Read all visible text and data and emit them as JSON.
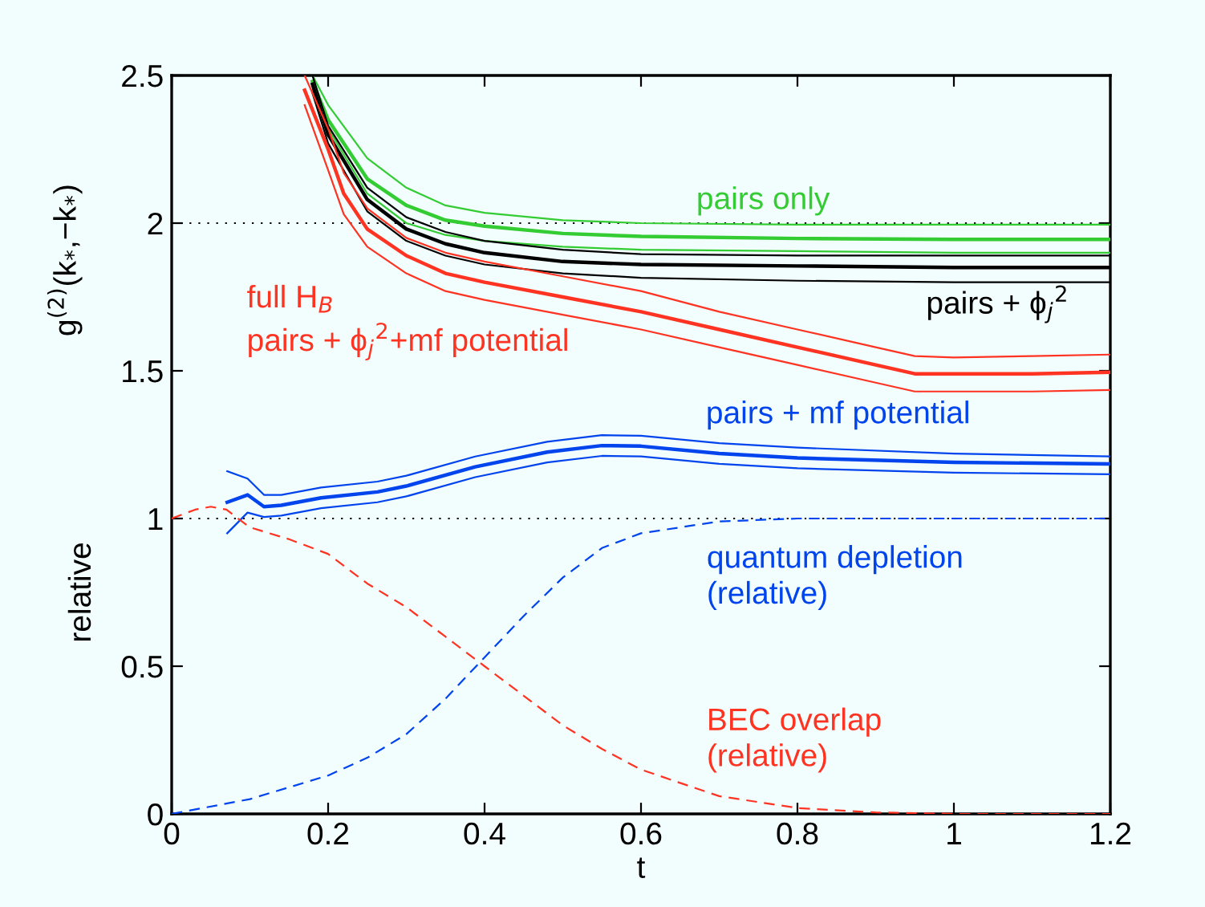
{
  "chart_data": {
    "type": "line",
    "xlabel": "t",
    "ylabel": "g$^{(2)}$(k$_{*}$,−k$_{*}$)",
    "annotations": [
      "relative"
    ],
    "xlim": [
      0,
      1.2
    ],
    "ylim": [
      0,
      2.5
    ],
    "xticks": [
      0,
      0.2,
      0.4,
      0.6,
      0.8,
      1,
      1.2
    ],
    "yticks": [
      0,
      0.5,
      1,
      1.5,
      2,
      2.5
    ],
    "grid": false,
    "legend": false,
    "marker": "none",
    "ref_lines": [
      {
        "axis": "y",
        "value": 2,
        "color": "#000000",
        "line_style": "dotted"
      },
      {
        "axis": "y",
        "value": 1,
        "color": "#000000",
        "line_style": "dotted"
      }
    ],
    "series": [
      {
        "name": "pairs only",
        "color": "#33cc33",
        "line_style": "solid",
        "x": [
          0.18,
          0.2,
          0.25,
          0.3,
          0.35,
          0.4,
          0.5,
          0.6,
          0.8,
          1.0,
          1.2
        ],
        "values": [
          2.48,
          2.35,
          2.15,
          2.06,
          2.01,
          1.99,
          1.965,
          1.955,
          1.948,
          1.945,
          1.945
        ]
      },
      {
        "color": "#33cc33",
        "line_style": "solid",
        "x": [
          0.18,
          0.2,
          0.25,
          0.3,
          0.35,
          0.4,
          0.5,
          0.6,
          0.8,
          1.0,
          1.2
        ],
        "values": [
          2.5,
          2.4,
          2.22,
          2.12,
          2.06,
          2.035,
          2.01,
          2.0,
          1.995,
          1.995,
          1.995
        ]
      },
      {
        "color": "#33cc33",
        "line_style": "solid",
        "x": [
          0.18,
          0.2,
          0.25,
          0.3,
          0.35,
          0.4,
          0.5,
          0.6,
          0.8,
          1.0,
          1.2
        ],
        "values": [
          2.45,
          2.32,
          2.1,
          2.0,
          1.96,
          1.94,
          1.92,
          1.91,
          1.905,
          1.9,
          1.9
        ]
      },
      {
        "name": "pairs + ϕ$_{j}$$^{2}$",
        "color": "#000000",
        "line_style": "solid",
        "x": [
          0.18,
          0.2,
          0.25,
          0.3,
          0.35,
          0.4,
          0.5,
          0.6,
          0.8,
          1.0,
          1.2
        ],
        "values": [
          2.47,
          2.3,
          2.08,
          1.98,
          1.93,
          1.9,
          1.87,
          1.86,
          1.855,
          1.85,
          1.85
        ]
      },
      {
        "color": "#000000",
        "line_style": "solid",
        "x": [
          0.18,
          0.2,
          0.25,
          0.3,
          0.35,
          0.4,
          0.5,
          0.6,
          0.8,
          1.0,
          1.2
        ],
        "values": [
          2.5,
          2.33,
          2.12,
          2.02,
          1.97,
          1.94,
          1.91,
          1.895,
          1.89,
          1.89,
          1.89
        ]
      },
      {
        "color": "#000000",
        "line_style": "solid",
        "x": [
          0.18,
          0.2,
          0.25,
          0.3,
          0.35,
          0.4,
          0.5,
          0.6,
          0.8,
          1.0,
          1.2
        ],
        "values": [
          2.44,
          2.27,
          2.04,
          1.94,
          1.89,
          1.86,
          1.83,
          1.815,
          1.805,
          1.8,
          1.8
        ]
      },
      {
        "name": "full H$_{B}$\npairs + ϕ$_{j}$$^{2}$+mf potential",
        "color": "#ff3322",
        "line_style": "solid",
        "x": [
          0.17,
          0.2,
          0.22,
          0.25,
          0.3,
          0.35,
          0.4,
          0.5,
          0.6,
          0.7,
          0.8,
          0.9,
          0.95,
          1.0,
          1.1,
          1.2
        ],
        "values": [
          2.45,
          2.25,
          2.1,
          1.98,
          1.89,
          1.83,
          1.8,
          1.75,
          1.7,
          1.64,
          1.58,
          1.52,
          1.49,
          1.49,
          1.49,
          1.495
        ]
      },
      {
        "color": "#ff3322",
        "line_style": "solid",
        "x": [
          0.17,
          0.2,
          0.22,
          0.25,
          0.3,
          0.35,
          0.4,
          0.5,
          0.6,
          0.7,
          0.8,
          0.9,
          0.95,
          1.0,
          1.1,
          1.2
        ],
        "values": [
          2.5,
          2.32,
          2.17,
          2.05,
          1.95,
          1.9,
          1.87,
          1.82,
          1.77,
          1.7,
          1.64,
          1.58,
          1.55,
          1.545,
          1.55,
          1.555
        ]
      },
      {
        "color": "#ff3322",
        "line_style": "solid",
        "x": [
          0.17,
          0.2,
          0.22,
          0.25,
          0.3,
          0.35,
          0.4,
          0.5,
          0.6,
          0.7,
          0.8,
          0.9,
          0.95,
          1.0,
          1.1,
          1.2
        ],
        "values": [
          2.4,
          2.18,
          2.03,
          1.92,
          1.83,
          1.77,
          1.74,
          1.69,
          1.64,
          1.58,
          1.52,
          1.46,
          1.43,
          1.43,
          1.43,
          1.435
        ]
      },
      {
        "name": "pairs + mf potential",
        "color": "#0044ee",
        "line_style": "solid",
        "x": [
          0.071,
          0.097,
          0.118,
          0.14,
          0.191,
          0.263,
          0.3,
          0.388,
          0.48,
          0.55,
          0.6,
          0.7,
          0.8,
          1.0,
          1.2
        ],
        "values": [
          1.055,
          1.08,
          1.04,
          1.045,
          1.07,
          1.09,
          1.11,
          1.175,
          1.225,
          1.247,
          1.245,
          1.22,
          1.205,
          1.19,
          1.185
        ]
      },
      {
        "color": "#0044ee",
        "line_style": "solid",
        "x": [
          0.071,
          0.097,
          0.118,
          0.14,
          0.191,
          0.263,
          0.3,
          0.388,
          0.48,
          0.55,
          0.6,
          0.7,
          0.8,
          1.0,
          1.2
        ],
        "values": [
          1.16,
          1.135,
          1.08,
          1.08,
          1.105,
          1.125,
          1.145,
          1.21,
          1.26,
          1.282,
          1.28,
          1.255,
          1.24,
          1.22,
          1.21
        ]
      },
      {
        "color": "#0044ee",
        "line_style": "solid",
        "x": [
          0.071,
          0.097,
          0.118,
          0.14,
          0.191,
          0.263,
          0.3,
          0.388,
          0.48,
          0.55,
          0.6,
          0.7,
          0.8,
          1.0,
          1.2
        ],
        "values": [
          0.95,
          1.02,
          1.005,
          1.01,
          1.035,
          1.055,
          1.075,
          1.14,
          1.19,
          1.212,
          1.21,
          1.185,
          1.17,
          1.155,
          1.15
        ]
      },
      {
        "name": "quantum depletion\n(relative)",
        "color": "#0044ee",
        "line_style": "dashed",
        "x": [
          0,
          0.1,
          0.2,
          0.25,
          0.3,
          0.35,
          0.4,
          0.45,
          0.5,
          0.55,
          0.6,
          0.7,
          0.8,
          0.9,
          1.0,
          1.2
        ],
        "values": [
          0,
          0.05,
          0.13,
          0.19,
          0.27,
          0.39,
          0.53,
          0.67,
          0.8,
          0.9,
          0.95,
          0.99,
          1.0,
          1.0,
          1.0,
          1.0
        ]
      },
      {
        "name": "BEC overlap\n(relative)",
        "color": "#ff3322",
        "line_style": "dashed",
        "x": [
          0,
          0.03,
          0.05,
          0.07,
          0.1,
          0.15,
          0.2,
          0.25,
          0.3,
          0.35,
          0.4,
          0.45,
          0.5,
          0.55,
          0.6,
          0.7,
          0.8,
          0.9,
          1.0,
          1.2
        ],
        "values": [
          1.0,
          1.03,
          1.04,
          1.03,
          0.97,
          0.93,
          0.88,
          0.78,
          0.7,
          0.6,
          0.5,
          0.4,
          0.3,
          0.22,
          0.15,
          0.06,
          0.02,
          0.005,
          0,
          0
        ]
      }
    ]
  }
}
